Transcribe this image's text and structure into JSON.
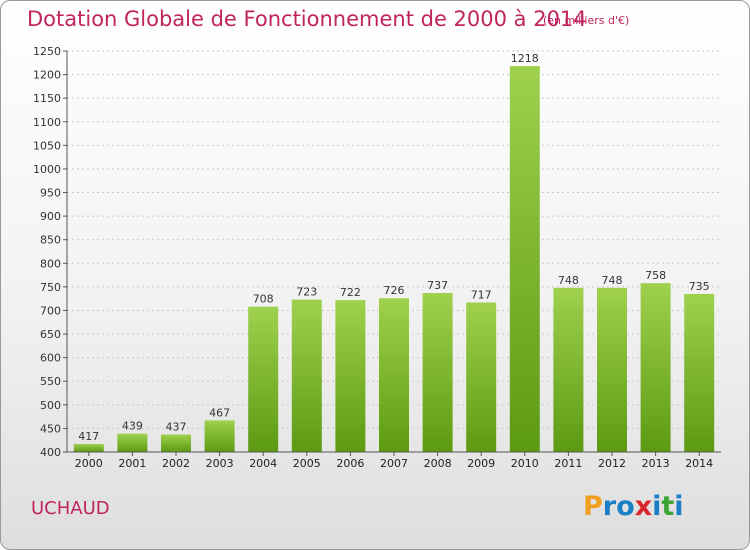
{
  "title": "Dotation Globale de Fonctionnement de 2000 à 2014",
  "subtitle": "(en milliers d'€)",
  "commune": "UCHAUD",
  "logo": {
    "text": "Proxiti",
    "letters": [
      "P",
      "r",
      "o",
      "x",
      "i",
      "t",
      "i"
    ],
    "colors": [
      "#f0a01e",
      "#1a7fc4",
      "#1a7fc4",
      "#d9262b",
      "#1a7fc4",
      "#3aa535",
      "#1a7fc4"
    ]
  },
  "colors": {
    "title": "#c0245f",
    "bar_top": "#9fd14e",
    "bar_bottom": "#5c9a12"
  },
  "chart_data": {
    "type": "bar",
    "categories": [
      "2000",
      "2001",
      "2002",
      "2003",
      "2004",
      "2005",
      "2006",
      "2007",
      "2008",
      "2009",
      "2010",
      "2011",
      "2012",
      "2013",
      "2014"
    ],
    "values": [
      417,
      439,
      437,
      467,
      708,
      723,
      722,
      726,
      737,
      717,
      1218,
      748,
      748,
      758,
      735
    ],
    "ylim": [
      400,
      1250
    ],
    "yticks": [
      400,
      450,
      500,
      550,
      600,
      650,
      700,
      750,
      800,
      850,
      900,
      950,
      1000,
      1050,
      1100,
      1150,
      1200,
      1250
    ],
    "grid": true
  }
}
